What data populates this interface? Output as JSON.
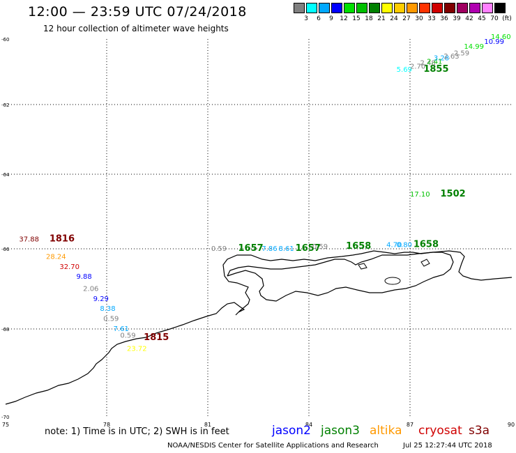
{
  "header": {
    "title": "12:00 — 23:59 UTC 07/24/2018",
    "subtitle": "12 hour collection of altimeter wave heights"
  },
  "scale": {
    "colors": [
      "#808080",
      "#00ffff",
      "#00a8ff",
      "#0000ff",
      "#00e000",
      "#00c000",
      "#008000",
      "#ffff00",
      "#ffcc00",
      "#ff9900",
      "#ff3300",
      "#d00000",
      "#800000",
      "#a00060",
      "#b000b0",
      "#ff80ff",
      "#000000"
    ],
    "labels": [
      "3",
      "6",
      "9",
      "12",
      "15",
      "18",
      "21",
      "24",
      "27",
      "30",
      "33",
      "36",
      "39",
      "42",
      "45",
      "70",
      "(ft)"
    ]
  },
  "axes": {
    "lon_ticks": [
      "75",
      "78",
      "81",
      "84",
      "87",
      "90"
    ],
    "lat_ticks": [
      "-60",
      "-62",
      "-64",
      "-66",
      "-68",
      "-70"
    ]
  },
  "observations": [
    {
      "text": "37.88",
      "color": "#800000",
      "lon": 75.4,
      "lat": -65.8
    },
    {
      "text": "1816",
      "color": "#800000",
      "lon": 76.3,
      "lat": -65.8,
      "time": true
    },
    {
      "text": "28.24",
      "color": "#ff9900",
      "lon": 76.2,
      "lat": -66.25
    },
    {
      "text": "32.70",
      "color": "#d00000",
      "lon": 76.6,
      "lat": -66.5
    },
    {
      "text": "9.88",
      "color": "#0000ff",
      "lon": 77.1,
      "lat": -66.75
    },
    {
      "text": "2.06",
      "color": "#808080",
      "lon": 77.3,
      "lat": -67.05
    },
    {
      "text": "9.29",
      "color": "#0000ff",
      "lon": 77.6,
      "lat": -67.3
    },
    {
      "text": "8.38",
      "color": "#00a8ff",
      "lon": 77.8,
      "lat": -67.55
    },
    {
      "text": "0.59",
      "color": "#808080",
      "lon": 77.9,
      "lat": -67.8
    },
    {
      "text": "7.61",
      "color": "#00a8ff",
      "lon": 78.2,
      "lat": -68.05
    },
    {
      "text": "0.59",
      "color": "#808080",
      "lon": 78.4,
      "lat": -68.2
    },
    {
      "text": "23.72",
      "color": "#ffff00",
      "lon": 78.6,
      "lat": -68.5
    },
    {
      "text": "1815",
      "color": "#800000",
      "lon": 79.1,
      "lat": -68.25,
      "time": true
    },
    {
      "text": "0.59",
      "color": "#808080",
      "lon": 81.1,
      "lat": -66.05
    },
    {
      "text": "1657",
      "color": "#008000",
      "lon": 81.9,
      "lat": -66.05,
      "time": true
    },
    {
      "text": "7.86",
      "color": "#00a8ff",
      "lon": 82.6,
      "lat": -66.05
    },
    {
      "text": "8.61",
      "color": "#00a8ff",
      "lon": 83.1,
      "lat": -66.05
    },
    {
      "text": "1657",
      "color": "#008000",
      "lon": 83.6,
      "lat": -66.05,
      "time": true
    },
    {
      "text": "0.59",
      "color": "#808080",
      "lon": 84.1,
      "lat": -66.0
    },
    {
      "text": "1658",
      "color": "#008000",
      "lon": 85.1,
      "lat": -66.0,
      "time": true
    },
    {
      "text": "4.70",
      "color": "#00a8ff",
      "lon": 86.3,
      "lat": -65.95
    },
    {
      "text": "0.80",
      "color": "#00a8ff",
      "lon": 86.6,
      "lat": -65.95
    },
    {
      "text": "1658",
      "color": "#008000",
      "lon": 87.1,
      "lat": -65.95,
      "time": true
    },
    {
      "text": "17.10",
      "color": "#00c000",
      "lon": 87.0,
      "lat": -64.6
    },
    {
      "text": "1502",
      "color": "#008000",
      "lon": 87.9,
      "lat": -64.6,
      "time": true
    },
    {
      "text": "5.69",
      "color": "#00ffff",
      "lon": 86.6,
      "lat": -61.0
    },
    {
      "text": "1855",
      "color": "#008000",
      "lon": 87.4,
      "lat": -61.0,
      "time": true
    },
    {
      "text": "2.70",
      "color": "#808080",
      "lon": 87.0,
      "lat": -60.9
    },
    {
      "text": "2.48",
      "color": "#808080",
      "lon": 87.3,
      "lat": -60.8
    },
    {
      "text": "2.41",
      "color": "#00c000",
      "lon": 87.5,
      "lat": -60.75
    },
    {
      "text": "3.28",
      "color": "#00a8ff",
      "lon": 87.7,
      "lat": -60.65
    },
    {
      "text": "2.63",
      "color": "#808080",
      "lon": 88.0,
      "lat": -60.6
    },
    {
      "text": "2.59",
      "color": "#808080",
      "lon": 88.3,
      "lat": -60.5
    },
    {
      "text": "14.99",
      "color": "#00e000",
      "lon": 88.6,
      "lat": -60.3
    },
    {
      "text": "10.99",
      "color": "#0000ff",
      "lon": 89.2,
      "lat": -60.15
    },
    {
      "text": "14.60",
      "color": "#00e000",
      "lon": 89.4,
      "lat": -60.0
    }
  ],
  "footer": {
    "note": "note:  1) Time is in UTC;  2) SWH is in feet",
    "satellites": [
      {
        "name": "jason2",
        "color": "#0000ff"
      },
      {
        "name": "jason3",
        "color": "#008000"
      },
      {
        "name": "altika",
        "color": "#ff9900"
      },
      {
        "name": "cryosat",
        "color": "#d00000"
      },
      {
        "name": "s3a",
        "color": "#800000"
      }
    ],
    "credit": "NOAA/NESDIS Center for Satellite Applications and Research",
    "timestamp": "Jul 25 12:27:44 UTC 2018"
  }
}
